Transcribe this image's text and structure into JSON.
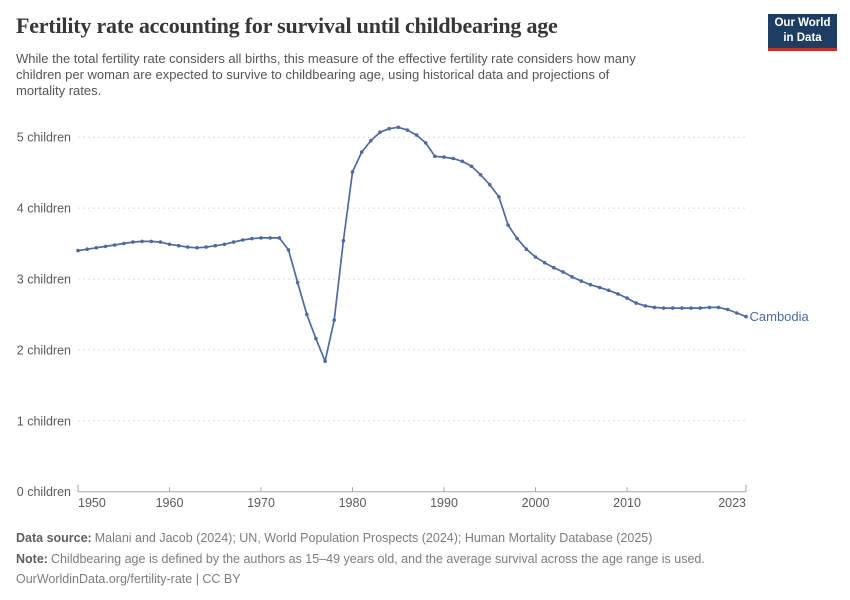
{
  "header": {
    "title": "Fertility rate accounting for survival until childbearing age",
    "subtitle_lines": [
      "While the total fertility rate considers all births, this measure of the effective fertility rate considers how many",
      "children per woman are expected to survive to childbearing age, using historical data and projections of",
      "mortality rates."
    ],
    "logo": {
      "line1": "Our World",
      "line2": "in Data"
    }
  },
  "colors": {
    "line": "#4C6BA5",
    "grid": "#dcdcdc",
    "axis": "#a9a9a9",
    "tick_label": "#5b5b5b",
    "logo_navy": "#1d3d63",
    "logo_red": "#c5302b"
  },
  "chart_data": {
    "type": "line",
    "title": "Fertility rate accounting for survival until childbearing age",
    "xlabel": "",
    "ylabel": "",
    "grid": "dashed horizontal",
    "legend_position": "end-of-line label",
    "xlim": [
      1950,
      2023
    ],
    "ylim": [
      0,
      5.6
    ],
    "x_ticks": [
      1950,
      1960,
      1970,
      1980,
      1990,
      2000,
      2010,
      2023
    ],
    "y_ticks": [
      {
        "value": 0,
        "label": "0 children"
      },
      {
        "value": 1,
        "label": "1 children"
      },
      {
        "value": 2,
        "label": "2 children"
      },
      {
        "value": 3,
        "label": "3 children"
      },
      {
        "value": 4,
        "label": "4 children"
      },
      {
        "value": 5,
        "label": "5 children"
      }
    ],
    "x": [
      1950,
      1951,
      1952,
      1953,
      1954,
      1955,
      1956,
      1957,
      1958,
      1959,
      1960,
      1961,
      1962,
      1963,
      1964,
      1965,
      1966,
      1967,
      1968,
      1969,
      1970,
      1971,
      1972,
      1973,
      1974,
      1975,
      1976,
      1977,
      1978,
      1979,
      1980,
      1981,
      1982,
      1983,
      1984,
      1985,
      1986,
      1987,
      1988,
      1989,
      1990,
      1991,
      1992,
      1993,
      1994,
      1995,
      1996,
      1997,
      1998,
      1999,
      2000,
      2001,
      2002,
      2003,
      2004,
      2005,
      2006,
      2007,
      2008,
      2009,
      2010,
      2011,
      2012,
      2013,
      2014,
      2015,
      2016,
      2017,
      2018,
      2019,
      2020,
      2021,
      2022,
      2023
    ],
    "series": [
      {
        "name": "Cambodia",
        "color": "#4C6BA5",
        "values": [
          3.4,
          3.42,
          3.44,
          3.46,
          3.48,
          3.5,
          3.52,
          3.53,
          3.53,
          3.52,
          3.49,
          3.47,
          3.45,
          3.44,
          3.45,
          3.47,
          3.49,
          3.52,
          3.55,
          3.57,
          3.58,
          3.58,
          3.58,
          3.41,
          2.95,
          2.5,
          2.16,
          1.84,
          2.42,
          3.54,
          4.51,
          4.79,
          4.95,
          5.07,
          5.12,
          5.14,
          5.1,
          5.03,
          4.92,
          4.73,
          4.72,
          4.7,
          4.66,
          4.59,
          4.47,
          4.33,
          4.16,
          3.76,
          3.57,
          3.42,
          3.31,
          3.23,
          3.16,
          3.1,
          3.03,
          2.97,
          2.92,
          2.88,
          2.84,
          2.79,
          2.73,
          2.66,
          2.62,
          2.6,
          2.59,
          2.59,
          2.59,
          2.59,
          2.59,
          2.6,
          2.6,
          2.57,
          2.52,
          2.47
        ]
      }
    ]
  },
  "footer": {
    "data_source_label": "Data source:",
    "data_source": "Malani and Jacob (2024); UN, World Population Prospects (2024); Human Mortality Database (2025)",
    "note_label": "Note:",
    "note": "Childbearing age is defined by the authors as 15–49 years old, and the average survival across the age range is used.",
    "url_line": "OurWorldinData.org/fertility-rate | CC BY"
  }
}
